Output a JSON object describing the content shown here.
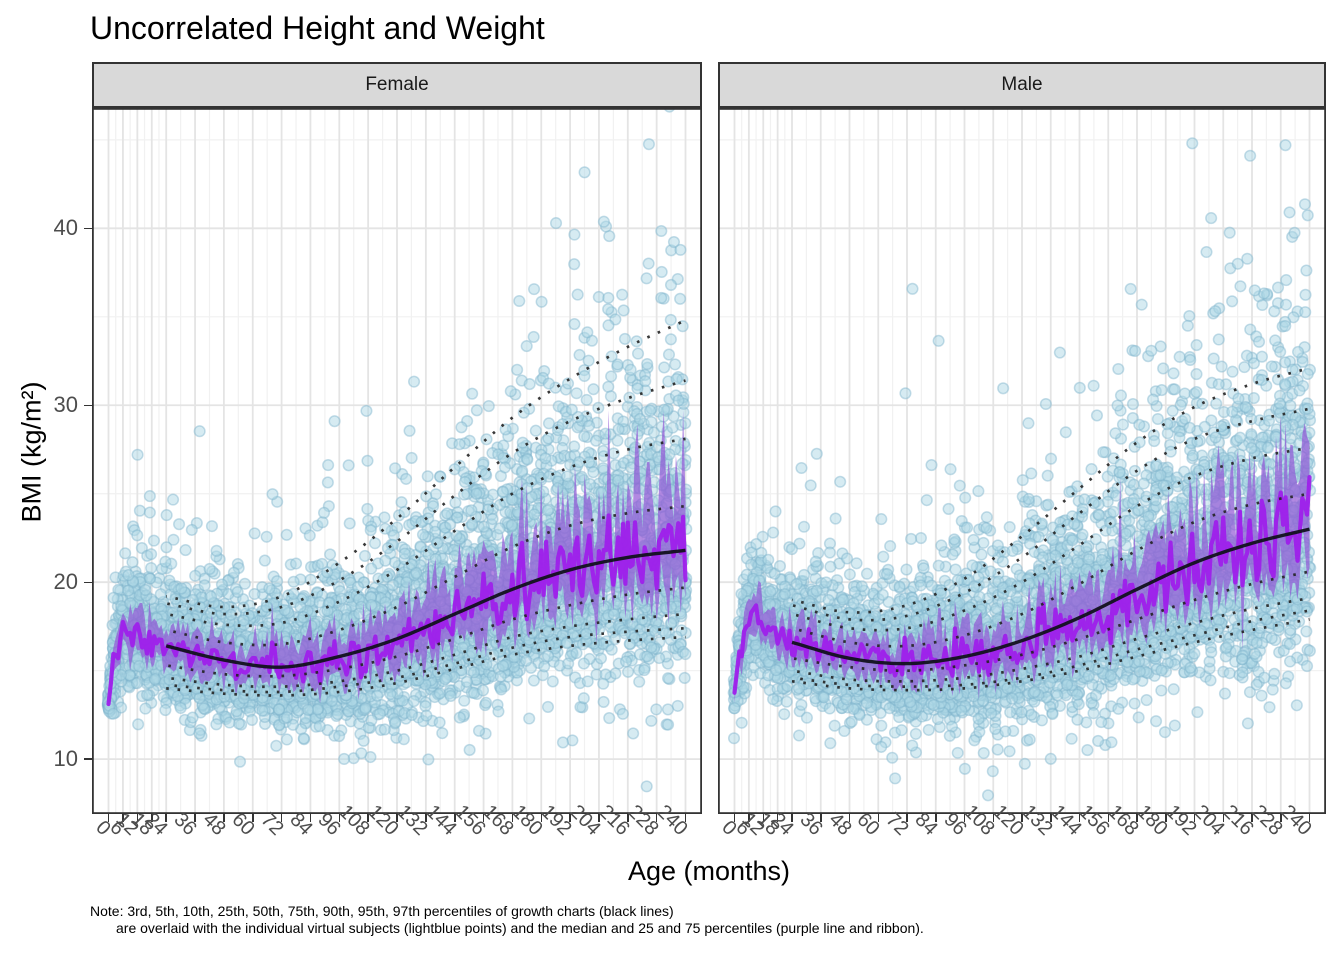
{
  "title": "Uncorrelated Height and Weight",
  "note_line1": "Note: 3rd, 5th, 10th, 25th, 50th, 75th, 90th, 95th, 97th percentiles of growth charts (black lines)",
  "note_line2": "are overlaid with the individual virtual subjects (lightblue points) and the median and 25 and 75 percentiles (purple line and ribbon).",
  "chart_data": {
    "type": "scatter",
    "title": "Uncorrelated Height and Weight",
    "xlabel": "Age (months)",
    "ylabel": "BMI (kg/m²)",
    "xlim": [
      0,
      240
    ],
    "ylim": [
      6.9,
      46.8
    ],
    "x_ticks": [
      0,
      6,
      12,
      18,
      24,
      36,
      48,
      60,
      72,
      84,
      96,
      108,
      120,
      132,
      144,
      156,
      168,
      180,
      192,
      204,
      216,
      228,
      240
    ],
    "y_ticks": [
      10,
      20,
      30,
      40
    ],
    "grid": "major+minor",
    "legend": "none",
    "percentile_levels": [
      3,
      5,
      10,
      25,
      50,
      75,
      90,
      95,
      97
    ],
    "growth_ages": [
      24,
      48,
      72,
      96,
      120,
      144,
      168,
      192,
      216,
      240
    ],
    "facets": [
      {
        "label": "Female",
        "seed": 1337,
        "median_knots": {
          "ages": [
            0,
            2,
            4,
            6,
            9,
            12,
            18,
            24,
            36,
            48,
            60,
            72,
            84,
            96,
            108,
            120,
            132,
            144,
            156,
            168,
            180,
            192,
            204,
            216,
            228,
            240
          ],
          "values": [
            13.2,
            15.3,
            16.8,
            17.3,
            17.4,
            17.1,
            16.7,
            16.4,
            15.9,
            15.6,
            15.3,
            15.2,
            15.3,
            15.6,
            16.0,
            16.5,
            17.1,
            17.8,
            18.5,
            19.2,
            19.9,
            20.5,
            21.0,
            21.4,
            21.6,
            21.8
          ]
        },
        "growth_percentiles": [
          [
            14.0,
            13.7,
            13.6,
            13.8,
            14.3,
            15.1,
            15.9,
            16.4,
            16.7,
            16.9
          ],
          [
            14.2,
            13.9,
            13.8,
            14.1,
            14.6,
            15.4,
            16.3,
            16.9,
            17.2,
            17.4
          ],
          [
            14.6,
            14.2,
            14.1,
            14.4,
            15.0,
            15.9,
            16.9,
            17.5,
            17.9,
            18.2
          ],
          [
            15.3,
            14.8,
            14.7,
            15.1,
            15.8,
            16.8,
            17.9,
            18.7,
            19.3,
            19.7
          ],
          [
            16.4,
            15.6,
            15.2,
            15.8,
            16.8,
            18.2,
            19.6,
            20.7,
            21.4,
            21.8
          ],
          [
            17.3,
            16.6,
            16.5,
            17.3,
            18.6,
            20.3,
            22.0,
            23.2,
            23.9,
            24.3
          ],
          [
            18.2,
            17.6,
            17.7,
            18.9,
            20.7,
            22.9,
            25.0,
            26.5,
            27.5,
            28.1
          ],
          [
            18.8,
            18.2,
            18.6,
            20.1,
            22.3,
            24.9,
            27.3,
            29.1,
            30.4,
            31.4
          ],
          [
            19.2,
            18.6,
            19.2,
            21.1,
            23.6,
            26.5,
            29.3,
            31.5,
            33.3,
            34.8
          ]
        ]
      },
      {
        "label": "Male",
        "seed": 4242,
        "median_knots": {
          "ages": [
            0,
            2,
            4,
            6,
            9,
            12,
            18,
            24,
            36,
            48,
            60,
            72,
            84,
            96,
            108,
            120,
            132,
            144,
            156,
            168,
            180,
            192,
            204,
            216,
            228,
            240
          ],
          "values": [
            13.4,
            15.7,
            17.2,
            17.7,
            17.8,
            17.5,
            17.0,
            16.6,
            16.1,
            15.8,
            15.5,
            15.4,
            15.5,
            15.7,
            16.0,
            16.4,
            16.9,
            17.5,
            18.2,
            19.0,
            19.8,
            20.6,
            21.4,
            22.0,
            22.6,
            23.0
          ]
        },
        "growth_percentiles": [
          [
            14.4,
            14.0,
            13.9,
            14.0,
            14.4,
            15.0,
            15.8,
            16.6,
            17.3,
            17.9
          ],
          [
            14.6,
            14.2,
            14.1,
            14.2,
            14.6,
            15.3,
            16.2,
            17.0,
            17.8,
            18.4
          ],
          [
            15.0,
            14.5,
            14.4,
            14.6,
            15.1,
            15.8,
            16.8,
            17.7,
            18.5,
            19.1
          ],
          [
            15.7,
            15.2,
            15.0,
            15.3,
            15.9,
            16.8,
            17.9,
            19.0,
            19.9,
            20.6
          ],
          [
            16.6,
            15.7,
            15.4,
            15.8,
            16.7,
            18.0,
            19.6,
            21.1,
            22.2,
            23.0
          ],
          [
            17.4,
            16.6,
            16.4,
            17.0,
            18.2,
            19.9,
            21.8,
            23.4,
            24.4,
            25.0
          ],
          [
            18.2,
            17.4,
            17.4,
            18.4,
            20.0,
            22.1,
            24.3,
            26.0,
            27.0,
            27.6
          ],
          [
            18.7,
            17.9,
            18.1,
            19.4,
            21.4,
            23.9,
            26.3,
            28.1,
            29.1,
            29.8
          ],
          [
            19.0,
            18.3,
            18.7,
            20.2,
            22.6,
            25.3,
            27.9,
            29.9,
            31.2,
            32.1
          ]
        ]
      }
    ],
    "scatter": {
      "n_points_per_facet": 5200,
      "sigma_up_base": 0.09,
      "sigma_up_slope": 0.0006,
      "sigma_dn_base": 0.08,
      "sigma_dn_slope": 0.00035,
      "young_factor_base": 0.45,
      "young_factor_slope": 0.14,
      "outlier_prob": 0.12,
      "outlier_mult": 1.8
    },
    "colors": {
      "point_fill": "rgba(173,216,230,0.50)",
      "point_stroke": "rgba(126,179,204,0.45)",
      "ribbon": "rgba(146,87,214,0.70)",
      "median_line": "rgba(158,28,235,0.92)",
      "growth_dotted": "rgba(35,35,35,0.90)",
      "growth_solid": "rgba(18,18,30,0.95)",
      "grid_major": "#E4E4E4",
      "grid_minor": "#F1F1F1",
      "panel_border": "#333333",
      "strip_bg": "#D9D9D9",
      "tick_text": "#4d4d4d"
    }
  }
}
